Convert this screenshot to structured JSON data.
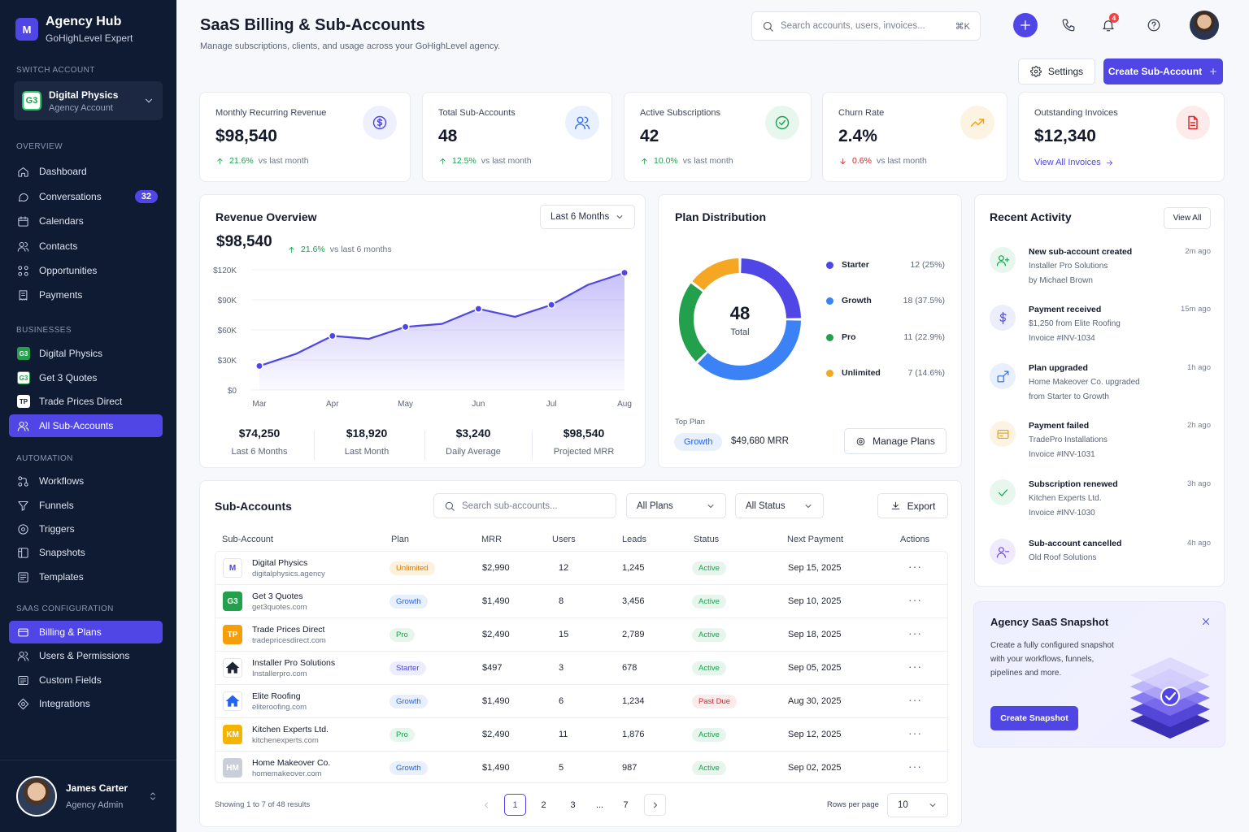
{
  "sidebar": {
    "brand_title": "Agency Hub",
    "brand_sub": "GoHighLevel Expert",
    "brand_logo": "M",
    "switch_label": "Switch Account",
    "account": {
      "name": "Digital Physics",
      "type": "Agency Account",
      "logo": "G3"
    },
    "sections": {
      "overview": "Overview",
      "businesses": "Businesses",
      "automation": "Automation",
      "saas": "SaaS Configuration"
    },
    "overview": [
      "Dashboard",
      "Conversations",
      "Calendars",
      "Contacts",
      "Opportunities",
      "Payments"
    ],
    "conversations_badge": "32",
    "businesses": [
      {
        "name": "Digital Physics",
        "logo": "G3"
      },
      {
        "name": "Get 3 Quotes",
        "logo": "G3"
      },
      {
        "name": "Trade Prices Direct",
        "logo": "TP"
      },
      {
        "name": "All Sub-Accounts",
        "logo": ""
      }
    ],
    "automation": [
      "Workflows",
      "Funnels",
      "Triggers",
      "Snapshots",
      "Templates"
    ],
    "saas": [
      "Billing & Plans",
      "Users & Permissions",
      "Custom Fields",
      "Integrations"
    ],
    "user": {
      "name": "James Carter",
      "role": "Agency Admin"
    }
  },
  "header": {
    "title": "SaaS Billing & Sub-Accounts",
    "subtitle": "Manage subscriptions, clients, and usage across your GoHighLevel agency.",
    "search_placeholder": "Search accounts, users, invoices...",
    "search_kbd": "⌘K",
    "notif_count": "4",
    "settings": "Settings",
    "create": "Create Sub-Account"
  },
  "kpis": [
    {
      "label": "Monthly Recurring Revenue",
      "value": "$98,540",
      "pct": "21.6%",
      "note": "vs last month",
      "dir": "up"
    },
    {
      "label": "Total Sub-Accounts",
      "value": "48",
      "pct": "12.5%",
      "note": "vs last month",
      "dir": "up"
    },
    {
      "label": "Active Subscriptions",
      "value": "42",
      "pct": "10.0%",
      "note": "vs last month",
      "dir": "up"
    },
    {
      "label": "Churn Rate",
      "value": "2.4%",
      "pct": "0.6%",
      "note": "vs last month",
      "dir": "down"
    },
    {
      "label": "Outstanding Invoices",
      "value": "$12,340",
      "link": "View All Invoices"
    }
  ],
  "revenue": {
    "title": "Revenue Overview",
    "range": "Last 6 Months",
    "value": "$98,540",
    "pct": "21.6%",
    "note": "vs last 6 months",
    "stats": [
      {
        "value": "$74,250",
        "label": "Last 6 Months"
      },
      {
        "value": "$18,920",
        "label": "Last Month"
      },
      {
        "value": "$3,240",
        "label": "Daily Average"
      },
      {
        "value": "$98,540",
        "label": "Projected MRR"
      }
    ]
  },
  "chart_data": {
    "type": "area",
    "categories": [
      "Mar",
      "Apr",
      "May",
      "Jun",
      "Jul",
      "Aug"
    ],
    "x": [
      0,
      0.5,
      1,
      1.5,
      2,
      2.5,
      3,
      3.5,
      4,
      4.5,
      5
    ],
    "values": [
      24000,
      36000,
      54000,
      51000,
      63000,
      66000,
      81000,
      73000,
      85000,
      105000,
      117000
    ],
    "yticks": [
      "$0",
      "$30K",
      "$60K",
      "$90K",
      "$120K"
    ],
    "ylim": [
      0,
      120000
    ],
    "color": "#4f46e5"
  },
  "plans": {
    "title": "Plan Distribution",
    "total": "48",
    "total_label": "Total",
    "items": [
      {
        "name": "Starter",
        "value": "12 (25%)",
        "count": 12,
        "color": "#4f46e5"
      },
      {
        "name": "Growth",
        "value": "18 (37.5%)",
        "count": 18,
        "color": "#3b82f6"
      },
      {
        "name": "Pro",
        "value": "11 (22.9%)",
        "count": 11,
        "color": "#22a04b"
      },
      {
        "name": "Unlimited",
        "value": "7 (14.6%)",
        "count": 7,
        "color": "#f5a623"
      }
    ],
    "top_plan_label": "Top Plan",
    "top_plan": "Growth",
    "top_plan_mrr": "$49,680 MRR",
    "manage": "Manage Plans"
  },
  "activity": {
    "title": "Recent Activity",
    "view_all": "View All",
    "items": [
      {
        "title": "New sub-account created",
        "l1": "Installer Pro Solutions",
        "l2": "by Michael Brown",
        "time": "2m ago",
        "icon": "user-plus-icon",
        "color": "#16a34a",
        "bg": "#e8f7ee"
      },
      {
        "title": "Payment received",
        "l1": "$1,250 from Elite Roofing",
        "l2": "Invoice #INV-1034",
        "time": "15m ago",
        "icon": "dollar-icon",
        "color": "#4f46e5",
        "bg": "#eceefe"
      },
      {
        "title": "Plan upgraded",
        "l1": "Home Makeover Co. upgraded",
        "l2": "from Starter to Growth",
        "time": "1h ago",
        "icon": "upgrade-icon",
        "color": "#3b6fe5",
        "bg": "#e8effd"
      },
      {
        "title": "Payment failed",
        "l1": "TradePro Installations",
        "l2": "Invoice #INV-1031",
        "time": "2h ago",
        "icon": "card-icon",
        "color": "#f59e0b",
        "bg": "#fdf3e2"
      },
      {
        "title": "Subscription renewed",
        "l1": "Kitchen Experts Ltd.",
        "l2": "Invoice #INV-1030",
        "time": "3h ago",
        "icon": "check-icon",
        "color": "#16a34a",
        "bg": "#e8f7ee"
      },
      {
        "title": "Sub-account cancelled",
        "l1": "Old Roof Solutions",
        "l2": "",
        "time": "4h ago",
        "icon": "user-minus-icon",
        "color": "#6d4ae5",
        "bg": "#efeafd"
      }
    ]
  },
  "subaccounts": {
    "title": "Sub-Accounts",
    "search_placeholder": "Search sub-accounts...",
    "plan_filter": "All Plans",
    "status_filter": "All Status",
    "export": "Export",
    "columns": [
      "Sub-Account",
      "Plan",
      "MRR",
      "Users",
      "Leads",
      "Status",
      "Next Payment",
      "Actions"
    ],
    "rows": [
      {
        "name": "Digital Physics",
        "domain": "digitalphysics.agency",
        "logo": "M",
        "logo_bg": "#ffffff",
        "logo_fg": "#4f46e5",
        "plan": "Unlimited",
        "mrr": "$2,990",
        "users": "12",
        "leads": "1,245",
        "status": "Active",
        "next": "Sep 15, 2025"
      },
      {
        "name": "Get 3 Quotes",
        "domain": "get3quotes.com",
        "logo": "G3",
        "logo_bg": "#22a04b",
        "logo_fg": "#ffffff",
        "plan": "Growth",
        "mrr": "$1,490",
        "users": "8",
        "leads": "3,456",
        "status": "Active",
        "next": "Sep 10, 2025"
      },
      {
        "name": "Trade Prices Direct",
        "domain": "tradepricesdirect.com",
        "logo": "TP",
        "logo_bg": "#f59e0b",
        "logo_fg": "#ffffff",
        "plan": "Pro",
        "mrr": "$2,490",
        "users": "15",
        "leads": "2,789",
        "status": "Active",
        "next": "Sep 18, 2025"
      },
      {
        "name": "Installer Pro Solutions",
        "domain": "Installerpro.com",
        "logo": "house",
        "logo_bg": "#ffffff",
        "logo_fg": "#1f2433",
        "plan": "Starter",
        "mrr": "$497",
        "users": "3",
        "leads": "678",
        "status": "Active",
        "next": "Sep 05, 2025"
      },
      {
        "name": "Elite Roofing",
        "domain": "eliteroofing.com",
        "logo": "house",
        "logo_bg": "#ffffff",
        "logo_fg": "#2563eb",
        "plan": "Growth",
        "mrr": "$1,490",
        "users": "6",
        "leads": "1,234",
        "status": "Past Due",
        "next": "Aug 30, 2025"
      },
      {
        "name": "Kitchen Experts Ltd.",
        "domain": "kitchenexperts.com",
        "logo": "KM",
        "logo_bg": "#f5b400",
        "logo_fg": "#ffffff",
        "plan": "Pro",
        "mrr": "$2,490",
        "users": "11",
        "leads": "1,876",
        "status": "Active",
        "next": "Sep 12, 2025"
      },
      {
        "name": "Home Makeover Co.",
        "domain": "homemakeover.com",
        "logo": "HM",
        "logo_bg": "#c9ced8",
        "logo_fg": "#ffffff",
        "plan": "Growth",
        "mrr": "$1,490",
        "users": "5",
        "leads": "987",
        "status": "Active",
        "next": "Sep 02, 2025"
      }
    ],
    "showing": "Showing 1 to 7 of 48 results",
    "pages": [
      "1",
      "2",
      "3",
      "...",
      "7"
    ],
    "rows_per_page_label": "Rows per page",
    "rows_per_page": "10"
  },
  "snapshot": {
    "title": "Agency SaaS Snapshot",
    "l1": "Create a fully configured snapshot",
    "l2": "with your workflows, funnels,",
    "l3": "pipelines and more.",
    "button": "Create Snapshot"
  }
}
